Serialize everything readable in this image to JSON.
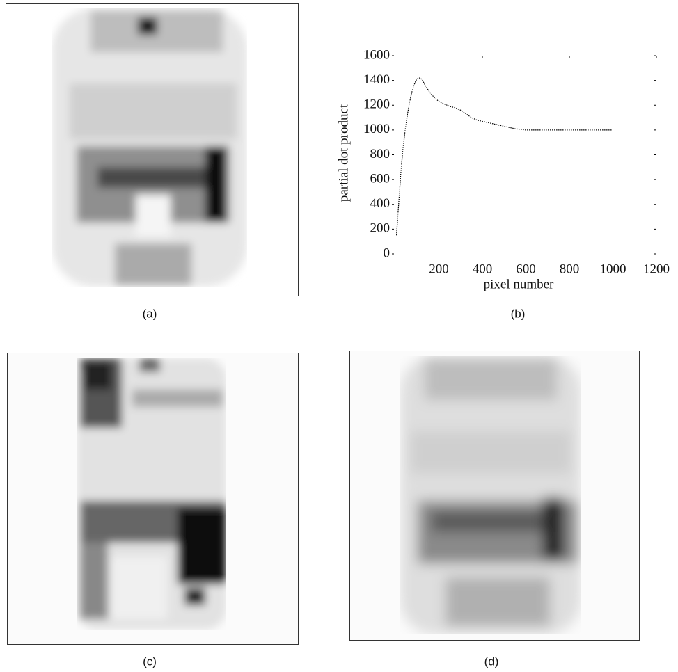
{
  "captions": [
    "(a)",
    "(b)",
    "(c)",
    "(d)"
  ],
  "chart_data": {
    "type": "line",
    "xlabel": "pixel number",
    "ylabel": "partial dot product",
    "x": [
      5,
      15,
      25,
      35,
      45,
      55,
      65,
      75,
      85,
      95,
      105,
      115,
      125,
      140,
      160,
      180,
      200,
      225,
      250,
      275,
      300,
      325,
      350,
      375,
      400,
      450,
      500,
      550,
      600,
      700,
      800,
      900,
      1000
    ],
    "values": [
      150,
      400,
      650,
      850,
      1000,
      1120,
      1220,
      1300,
      1360,
      1400,
      1420,
      1420,
      1400,
      1350,
      1300,
      1260,
      1230,
      1210,
      1190,
      1180,
      1160,
      1130,
      1100,
      1080,
      1070,
      1050,
      1030,
      1010,
      1000,
      1000,
      1000,
      1000,
      1000
    ],
    "color": "#000000",
    "xlim": [
      0,
      1200
    ],
    "ylim": [
      0,
      1600
    ],
    "xticks": [
      200,
      400,
      600,
      800,
      1000,
      1200
    ],
    "yticks": [
      0,
      200,
      400,
      600,
      800,
      1000,
      1200,
      1400,
      1600
    ]
  }
}
